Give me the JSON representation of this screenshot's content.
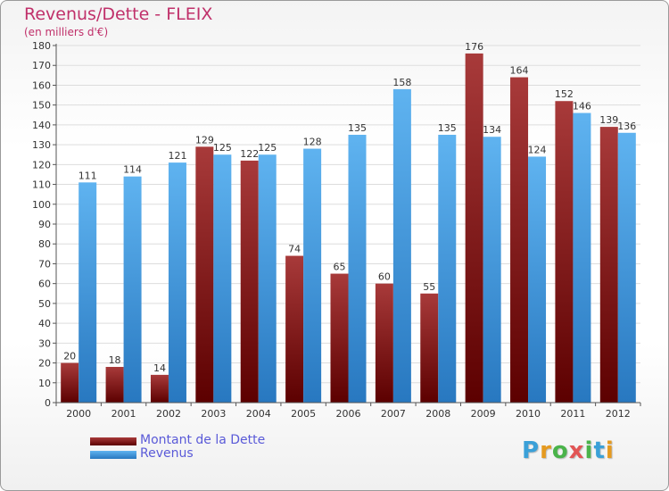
{
  "header": {
    "title": "Revenus/Dette - FLEIX",
    "subtitle": "(en milliers d'€)"
  },
  "legend": {
    "items": [
      {
        "label": "Montant de la Dette",
        "color": "#6b0a0a"
      },
      {
        "label": "Revenus",
        "color": "#3f9ee6"
      }
    ]
  },
  "logo": {
    "letters": [
      "P",
      "r",
      "o",
      "x",
      "i",
      "t",
      "i"
    ],
    "colors": [
      "#3aa0d8",
      "#e59a20",
      "#4ab34a",
      "#e25555",
      "#4ab34a",
      "#3aa0d8",
      "#e59a20"
    ]
  },
  "colors": {
    "dette_dark": "#5c0000",
    "dette_light": "#a83a3a",
    "revenus_dark": "#2878c0",
    "revenus_light": "#5fb3f0",
    "grid": "#dddddd"
  },
  "chart_data": {
    "type": "bar",
    "title": "Revenus/Dette - FLEIX",
    "subtitle": "(en milliers d'€)",
    "categories": [
      "2000",
      "2001",
      "2002",
      "2003",
      "2004",
      "2005",
      "2006",
      "2007",
      "2008",
      "2009",
      "2010",
      "2011",
      "2012"
    ],
    "series": [
      {
        "name": "Montant de la Dette",
        "values": [
          20,
          18,
          14,
          129,
          122,
          74,
          65,
          60,
          55,
          176,
          164,
          152,
          139
        ]
      },
      {
        "name": "Revenus",
        "values": [
          111,
          114,
          121,
          125,
          125,
          128,
          135,
          158,
          135,
          134,
          124,
          146,
          136
        ]
      }
    ],
    "ylim": [
      0,
      180
    ],
    "ytick_step": 10,
    "grid": true,
    "legend_position": "bottom-left"
  }
}
